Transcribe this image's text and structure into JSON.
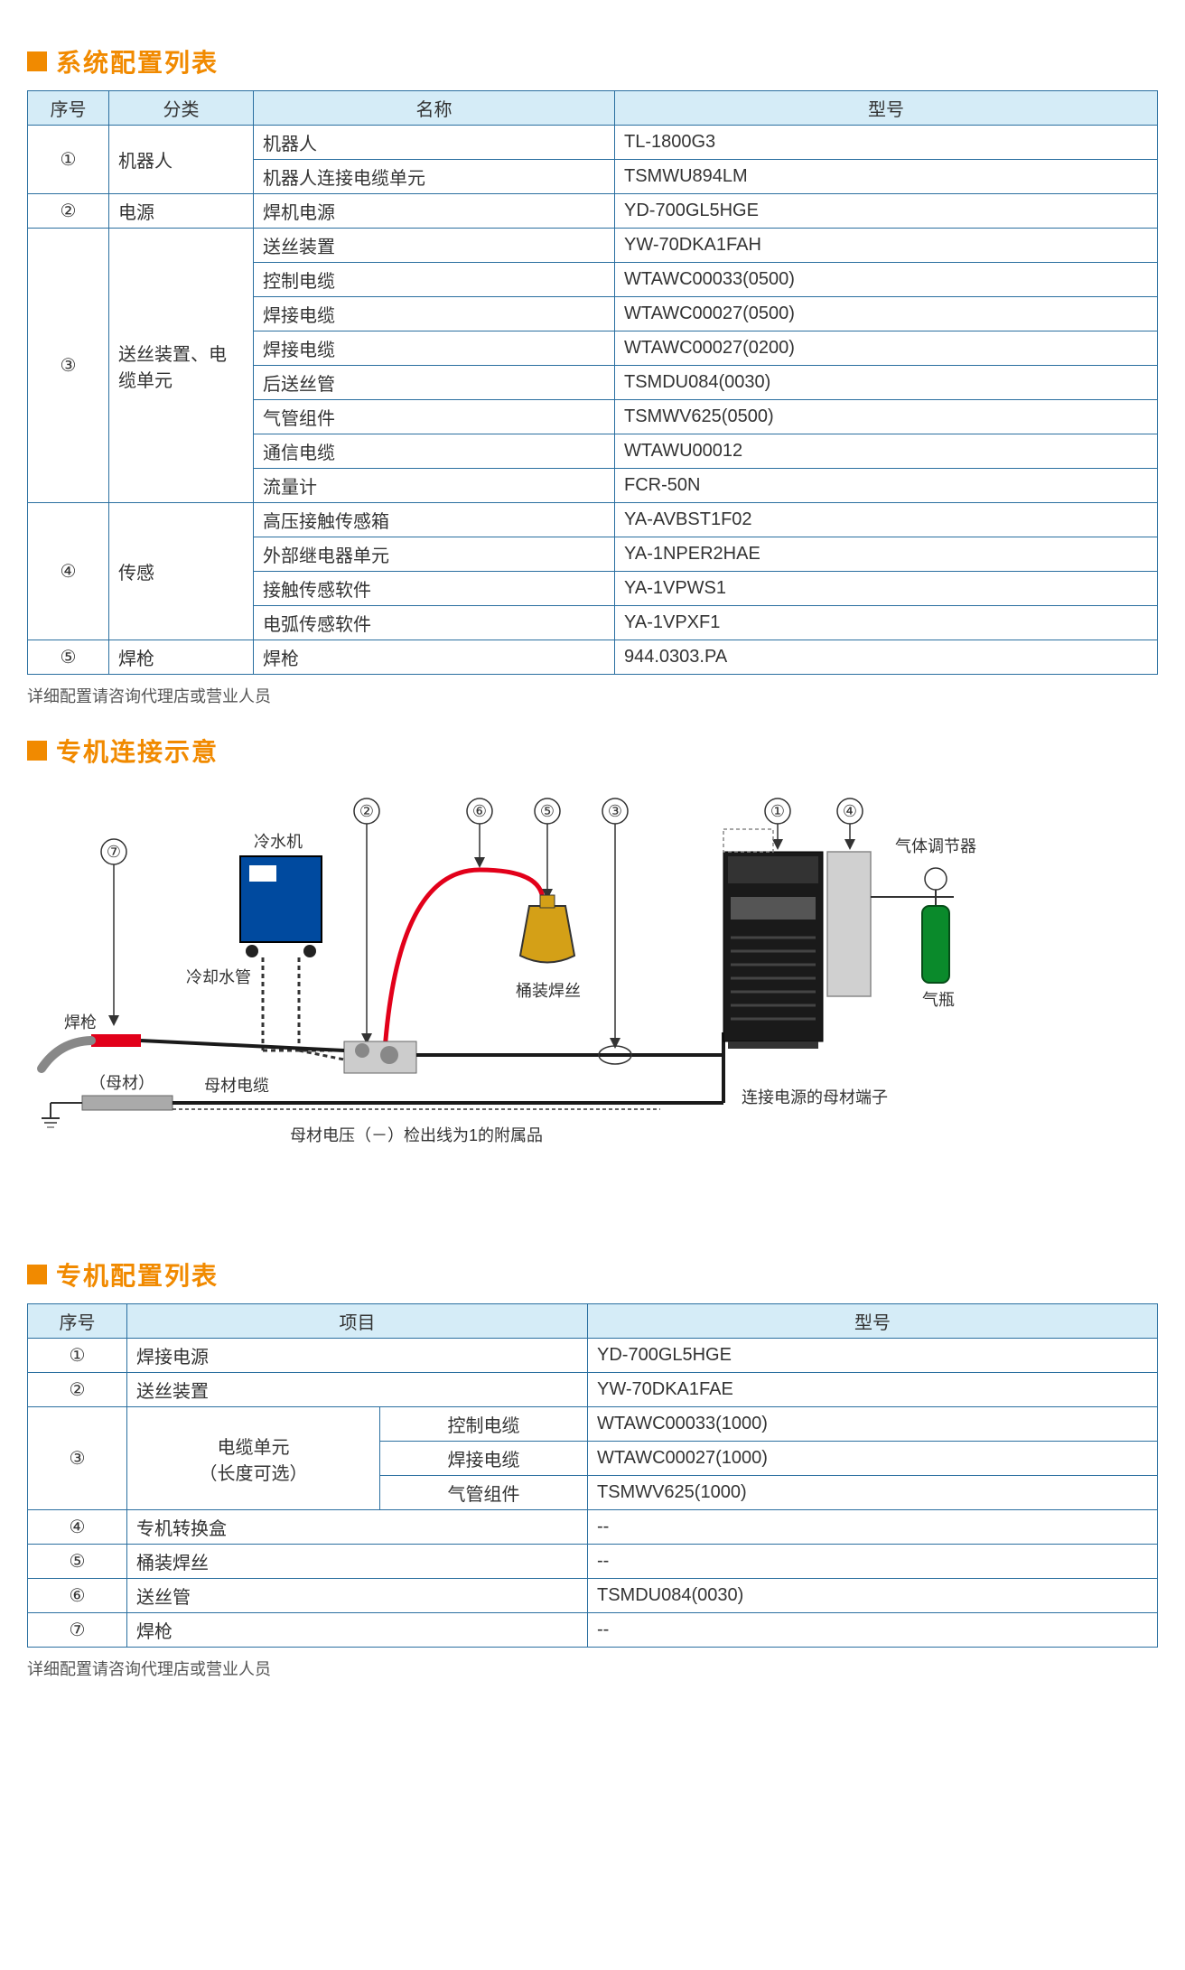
{
  "colors": {
    "accent": "#f18a00",
    "table_border": "#2a6fa0",
    "table_header_bg": "#d5ecf7",
    "text": "#333333",
    "note_text": "#555555",
    "diagram_red": "#e2001a",
    "diagram_blue": "#004a9f",
    "diagram_gold": "#d4a017",
    "diagram_green": "#0a8a2b",
    "diagram_gray": "#888888",
    "diagram_black": "#1a1a1a"
  },
  "sections": {
    "system_config_title": "系统配置列表",
    "connection_title": "专机连接示意",
    "machine_config_title": "专机配置列表"
  },
  "table1": {
    "headers": [
      "序号",
      "分类",
      "名称",
      "型号"
    ],
    "col_widths": [
      "80px",
      "150px",
      "auto",
      "auto"
    ],
    "rows": [
      {
        "no": "①",
        "cat": "机器人",
        "cat_span": 2,
        "name": "机器人",
        "model": "TL-1800G3"
      },
      {
        "name": "机器人连接电缆单元",
        "model": "TSMWU894LM"
      },
      {
        "no": "②",
        "cat": "电源",
        "cat_span": 1,
        "name": "焊机电源",
        "model": "YD-700GL5HGE"
      },
      {
        "no": "③",
        "cat": "送丝装置、电缆单元",
        "cat_span": 8,
        "name": "送丝装置",
        "model": "YW-70DKA1FAH"
      },
      {
        "name": "控制电缆",
        "model": "WTAWC00033(0500)"
      },
      {
        "name": "焊接电缆",
        "model": "WTAWC00027(0500)"
      },
      {
        "name": "焊接电缆",
        "model": "WTAWC00027(0200)"
      },
      {
        "name": "后送丝管",
        "model": "TSMDU084(0030)"
      },
      {
        "name": "气管组件",
        "model": "TSMWV625(0500)"
      },
      {
        "name": "通信电缆",
        "model": "WTAWU00012"
      },
      {
        "name": "流量计",
        "model": "FCR-50N"
      },
      {
        "no": "④",
        "cat": "传感",
        "cat_span": 4,
        "name": "高压接触传感箱",
        "model": "YA-AVBST1F02"
      },
      {
        "name": "外部继电器单元",
        "model": "YA-1NPER2HAE"
      },
      {
        "name": "接触传感软件",
        "model": "YA-1VPWS1"
      },
      {
        "name": "电弧传感软件",
        "model": "YA-1VPXF1"
      },
      {
        "no": "⑤",
        "cat": "焊枪",
        "cat_span": 1,
        "name": "焊枪",
        "model": "944.0303.PA"
      }
    ]
  },
  "note1": "详细配置请咨询代理店或营业人员",
  "diagram_labels": {
    "cooler": "冷水机",
    "cool_pipe": "冷却水管",
    "torch": "焊枪",
    "base": "（母材）",
    "base_cable": "母材电缆",
    "drum": "桶装焊丝",
    "volt_note": "母材电压（－）检出线为1的附属品",
    "power_terminal": "连接电源的母材端子",
    "gas_reg": "气体调节器",
    "gas_cyl": "气瓶",
    "markers": [
      "①",
      "②",
      "③",
      "④",
      "⑤",
      "⑥",
      "⑦"
    ]
  },
  "table2": {
    "headers": [
      "序号",
      "项目",
      "型号"
    ],
    "rows": [
      {
        "no": "①",
        "item": "焊接电源",
        "colspan": 2,
        "model": "YD-700GL5HGE"
      },
      {
        "no": "②",
        "item": "送丝装置",
        "colspan": 2,
        "model": "YW-70DKA1FAE"
      },
      {
        "no": "③",
        "no_span": 3,
        "item": "电缆单元（长度可选）",
        "item_span": 3,
        "sub": "控制电缆",
        "model": "WTAWC00033(1000)"
      },
      {
        "sub": "焊接电缆",
        "model": "WTAWC00027(1000)"
      },
      {
        "sub": "气管组件",
        "model": "TSMWV625(1000)"
      },
      {
        "no": "④",
        "item": "专机转换盒",
        "colspan": 2,
        "model": "--"
      },
      {
        "no": "⑤",
        "item": "桶装焊丝",
        "colspan": 2,
        "model": "--"
      },
      {
        "no": "⑥",
        "item": "送丝管",
        "colspan": 2,
        "model": "TSMDU084(0030)"
      },
      {
        "no": "⑦",
        "item": "焊枪",
        "colspan": 2,
        "model": "--"
      }
    ]
  },
  "note2": "详细配置请咨询代理店或营业人员"
}
